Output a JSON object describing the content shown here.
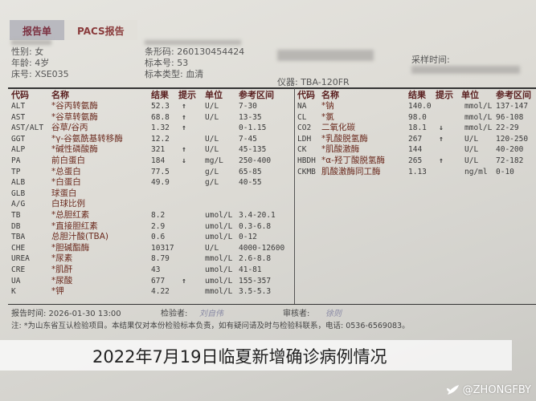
{
  "tabs": [
    {
      "label": "报告单",
      "active": true
    },
    {
      "label": "PACS报告",
      "active": false
    }
  ],
  "patient": {
    "sex": "性别: 女",
    "age": "年龄: 4岁",
    "bed": "床号: XSE035",
    "barcode": "条形码: 260130454424",
    "specimen_no": "标本号: 53",
    "specimen_type": "标本类型: 血清",
    "instrument": "仪器: TBA-120FR",
    "collect_time_label": "采样时间:"
  },
  "columns": {
    "code": "代码",
    "name": "名称",
    "result": "结果",
    "flag": "提示",
    "unit": "单位",
    "range": "参考区间"
  },
  "left_rows": [
    {
      "code": "ALT",
      "name": "*谷丙转氨酶",
      "result": "52.3",
      "flag": "↑",
      "unit": "U/L",
      "range": "7-30"
    },
    {
      "code": "AST",
      "name": "*谷草转氨酶",
      "result": "68.8",
      "flag": "↑",
      "unit": "U/L",
      "range": "13-35"
    },
    {
      "code": "AST/ALT",
      "name": "谷草/谷丙",
      "result": "1.32",
      "flag": "↑",
      "unit": "",
      "range": "0-1.15"
    },
    {
      "code": "GGT",
      "name": "*γ-谷氨酰基转移酶",
      "result": "12.2",
      "flag": "",
      "unit": "U/L",
      "range": "7-45"
    },
    {
      "code": "ALP",
      "name": "*碱性磷酸酶",
      "result": "321",
      "flag": "↑",
      "unit": "U/L",
      "range": "45-135"
    },
    {
      "code": "PA",
      "name": "前白蛋白",
      "result": "184",
      "flag": "↓",
      "unit": "mg/L",
      "range": "250-400"
    },
    {
      "code": "TP",
      "name": "*总蛋白",
      "result": "77.5",
      "flag": "",
      "unit": "g/L",
      "range": "65-85"
    },
    {
      "code": "ALB",
      "name": "*白蛋白",
      "result": "49.9",
      "flag": "",
      "unit": "g/L",
      "range": "40-55"
    },
    {
      "code": "GLB",
      "name": "球蛋白",
      "result": "",
      "flag": "",
      "unit": "",
      "range": ""
    },
    {
      "code": "A/G",
      "name": "白球比例",
      "result": "",
      "flag": "",
      "unit": "",
      "range": ""
    },
    {
      "code": "TB",
      "name": "*总胆红素",
      "result": "8.2",
      "flag": "",
      "unit": "umol/L",
      "range": "3.4-20.1"
    },
    {
      "code": "DB",
      "name": "*直接胆红素",
      "result": "2.9",
      "flag": "",
      "unit": "umol/L",
      "range": "0.3-6.8"
    },
    {
      "code": "TBA",
      "name": "总胆汁酸(TBA)",
      "result": "0.6",
      "flag": "",
      "unit": "umol/L",
      "range": "0-12"
    },
    {
      "code": "CHE",
      "name": "*胆碱酯酶",
      "result": "10317",
      "flag": "",
      "unit": "U/L",
      "range": "4000-12600"
    },
    {
      "code": "UREA",
      "name": "*尿素",
      "result": "8.79",
      "flag": "",
      "unit": "mmol/L",
      "range": "2.6-8.8"
    },
    {
      "code": "CRE",
      "name": "*肌酐",
      "result": "43",
      "flag": "",
      "unit": "umol/L",
      "range": "41-81"
    },
    {
      "code": "UA",
      "name": "*尿酸",
      "result": "677",
      "flag": "↑",
      "unit": "umol/L",
      "range": "155-357"
    },
    {
      "code": "K",
      "name": "*钾",
      "result": "4.22",
      "flag": "",
      "unit": "mmol/L",
      "range": "3.5-5.3"
    }
  ],
  "right_rows": [
    {
      "code": "NA",
      "name": "*钠",
      "result": "140.0",
      "flag": "",
      "unit": "mmol/L",
      "range": "137-147"
    },
    {
      "code": "CL",
      "name": "*氯",
      "result": "98.0",
      "flag": "",
      "unit": "mmol/L",
      "range": "96-108"
    },
    {
      "code": "CO2",
      "name": "二氧化碳",
      "result": "18.1",
      "flag": "↓",
      "unit": "mmol/L",
      "range": "22-29"
    },
    {
      "code": "LDH",
      "name": "*乳酸脱氢酶",
      "result": "267",
      "flag": "↑",
      "unit": "U/L",
      "range": "120-250"
    },
    {
      "code": "CK",
      "name": "*肌酸激酶",
      "result": "144",
      "flag": "",
      "unit": "U/L",
      "range": "40-200"
    },
    {
      "code": "HBDH",
      "name": "*α-羟丁酸脱氢酶",
      "result": "265",
      "flag": "↑",
      "unit": "U/L",
      "range": "72-182"
    },
    {
      "code": "CKMB",
      "name": "肌酸激酶同工酶",
      "result": "1.13",
      "flag": "",
      "unit": "ng/ml",
      "range": "0-10"
    }
  ],
  "footer": {
    "report_time": "报告时间: 2026-01-30 13:00",
    "tester_label": "检验者:",
    "tester_sig": "刘自伟",
    "reviewer_label": "审核者:",
    "reviewer_sig": "徐则",
    "note": "注: *为山东省互认检验项目。本结果仅对本份检验标本负责，如有疑问请及时与检验科联系，电话: 0536-6569083。"
  },
  "caption": "2022年7月19日临夏新增确诊病例情况",
  "watermark": "@ZHONGFBY"
}
